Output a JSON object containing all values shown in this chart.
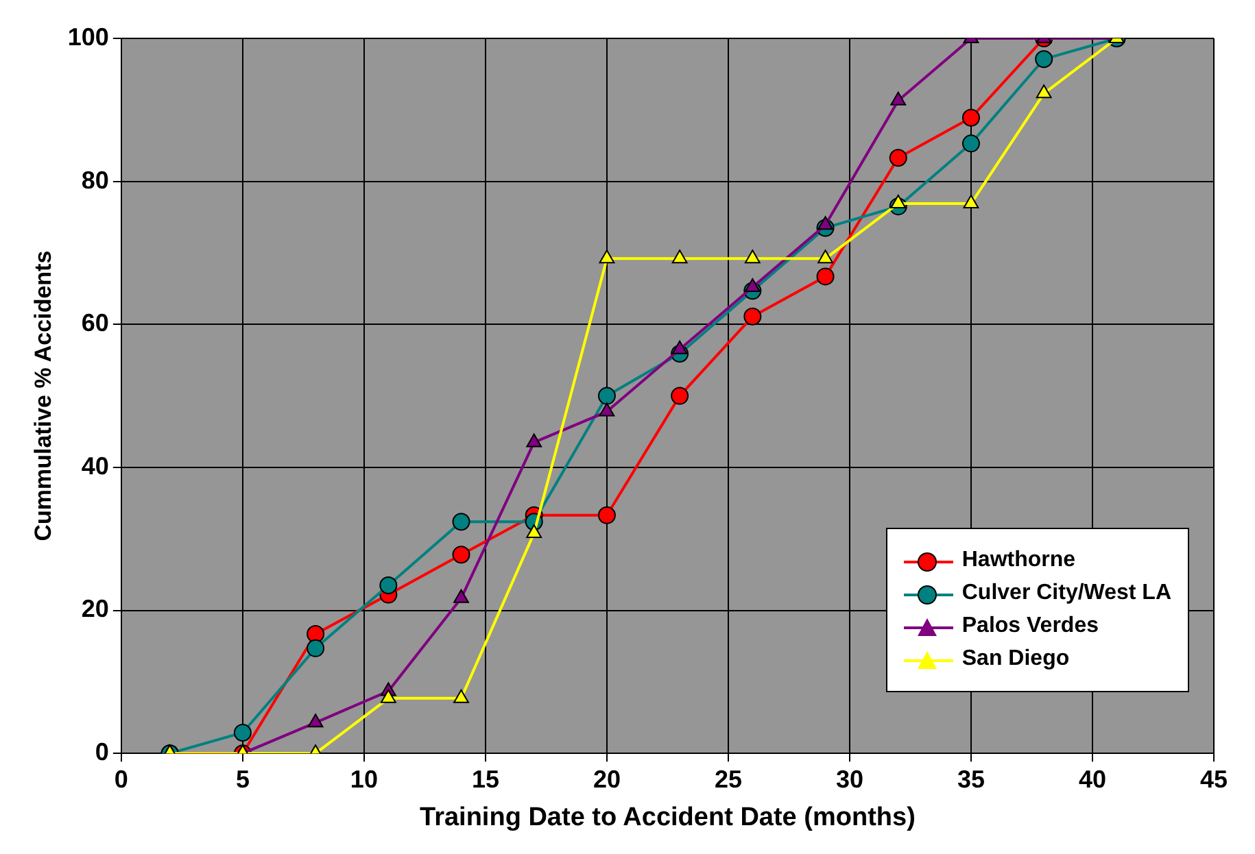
{
  "chart_data": {
    "type": "line",
    "xlabel": "Training Date to Accident Date (months)",
    "ylabel": "Cummulative % Accidents",
    "x": [
      2,
      5,
      8,
      11,
      14,
      17,
      20,
      23,
      26,
      29,
      32,
      35,
      38,
      41
    ],
    "series": [
      {
        "name": "Hawthorne",
        "color": "#ff0000",
        "marker": "circle",
        "values": [
          0,
          0,
          16.7,
          22.2,
          27.8,
          33.3,
          33.3,
          50,
          61.1,
          66.7,
          83.3,
          88.9,
          100,
          100
        ]
      },
      {
        "name": "Culver City/West LA",
        "color": "#008080",
        "marker": "circle",
        "values": [
          0,
          2.9,
          14.7,
          23.5,
          32.4,
          32.4,
          50,
          55.9,
          64.7,
          73.5,
          76.5,
          85.3,
          97.1,
          100
        ]
      },
      {
        "name": "Palos Verdes",
        "color": "#800080",
        "marker": "triangle",
        "values": [
          0,
          0,
          4.3,
          8.7,
          21.7,
          43.5,
          47.8,
          56.5,
          65.2,
          73.9,
          91.3,
          100,
          100,
          100
        ]
      },
      {
        "name": "San Diego",
        "color": "#ffff00",
        "marker": "triangle",
        "values": [
          0,
          0,
          0,
          7.7,
          7.7,
          30.8,
          69.2,
          69.2,
          69.2,
          69.2,
          76.9,
          76.9,
          92.3,
          100
        ]
      }
    ],
    "xlim": [
      0,
      45
    ],
    "xticks": [
      0,
      5,
      10,
      15,
      20,
      25,
      30,
      35,
      40,
      45
    ],
    "ylim": [
      0,
      100
    ],
    "yticks": [
      0,
      20,
      40,
      60,
      80,
      100
    ],
    "grid": true,
    "legend": "bottom right",
    "line_style": "solid"
  }
}
